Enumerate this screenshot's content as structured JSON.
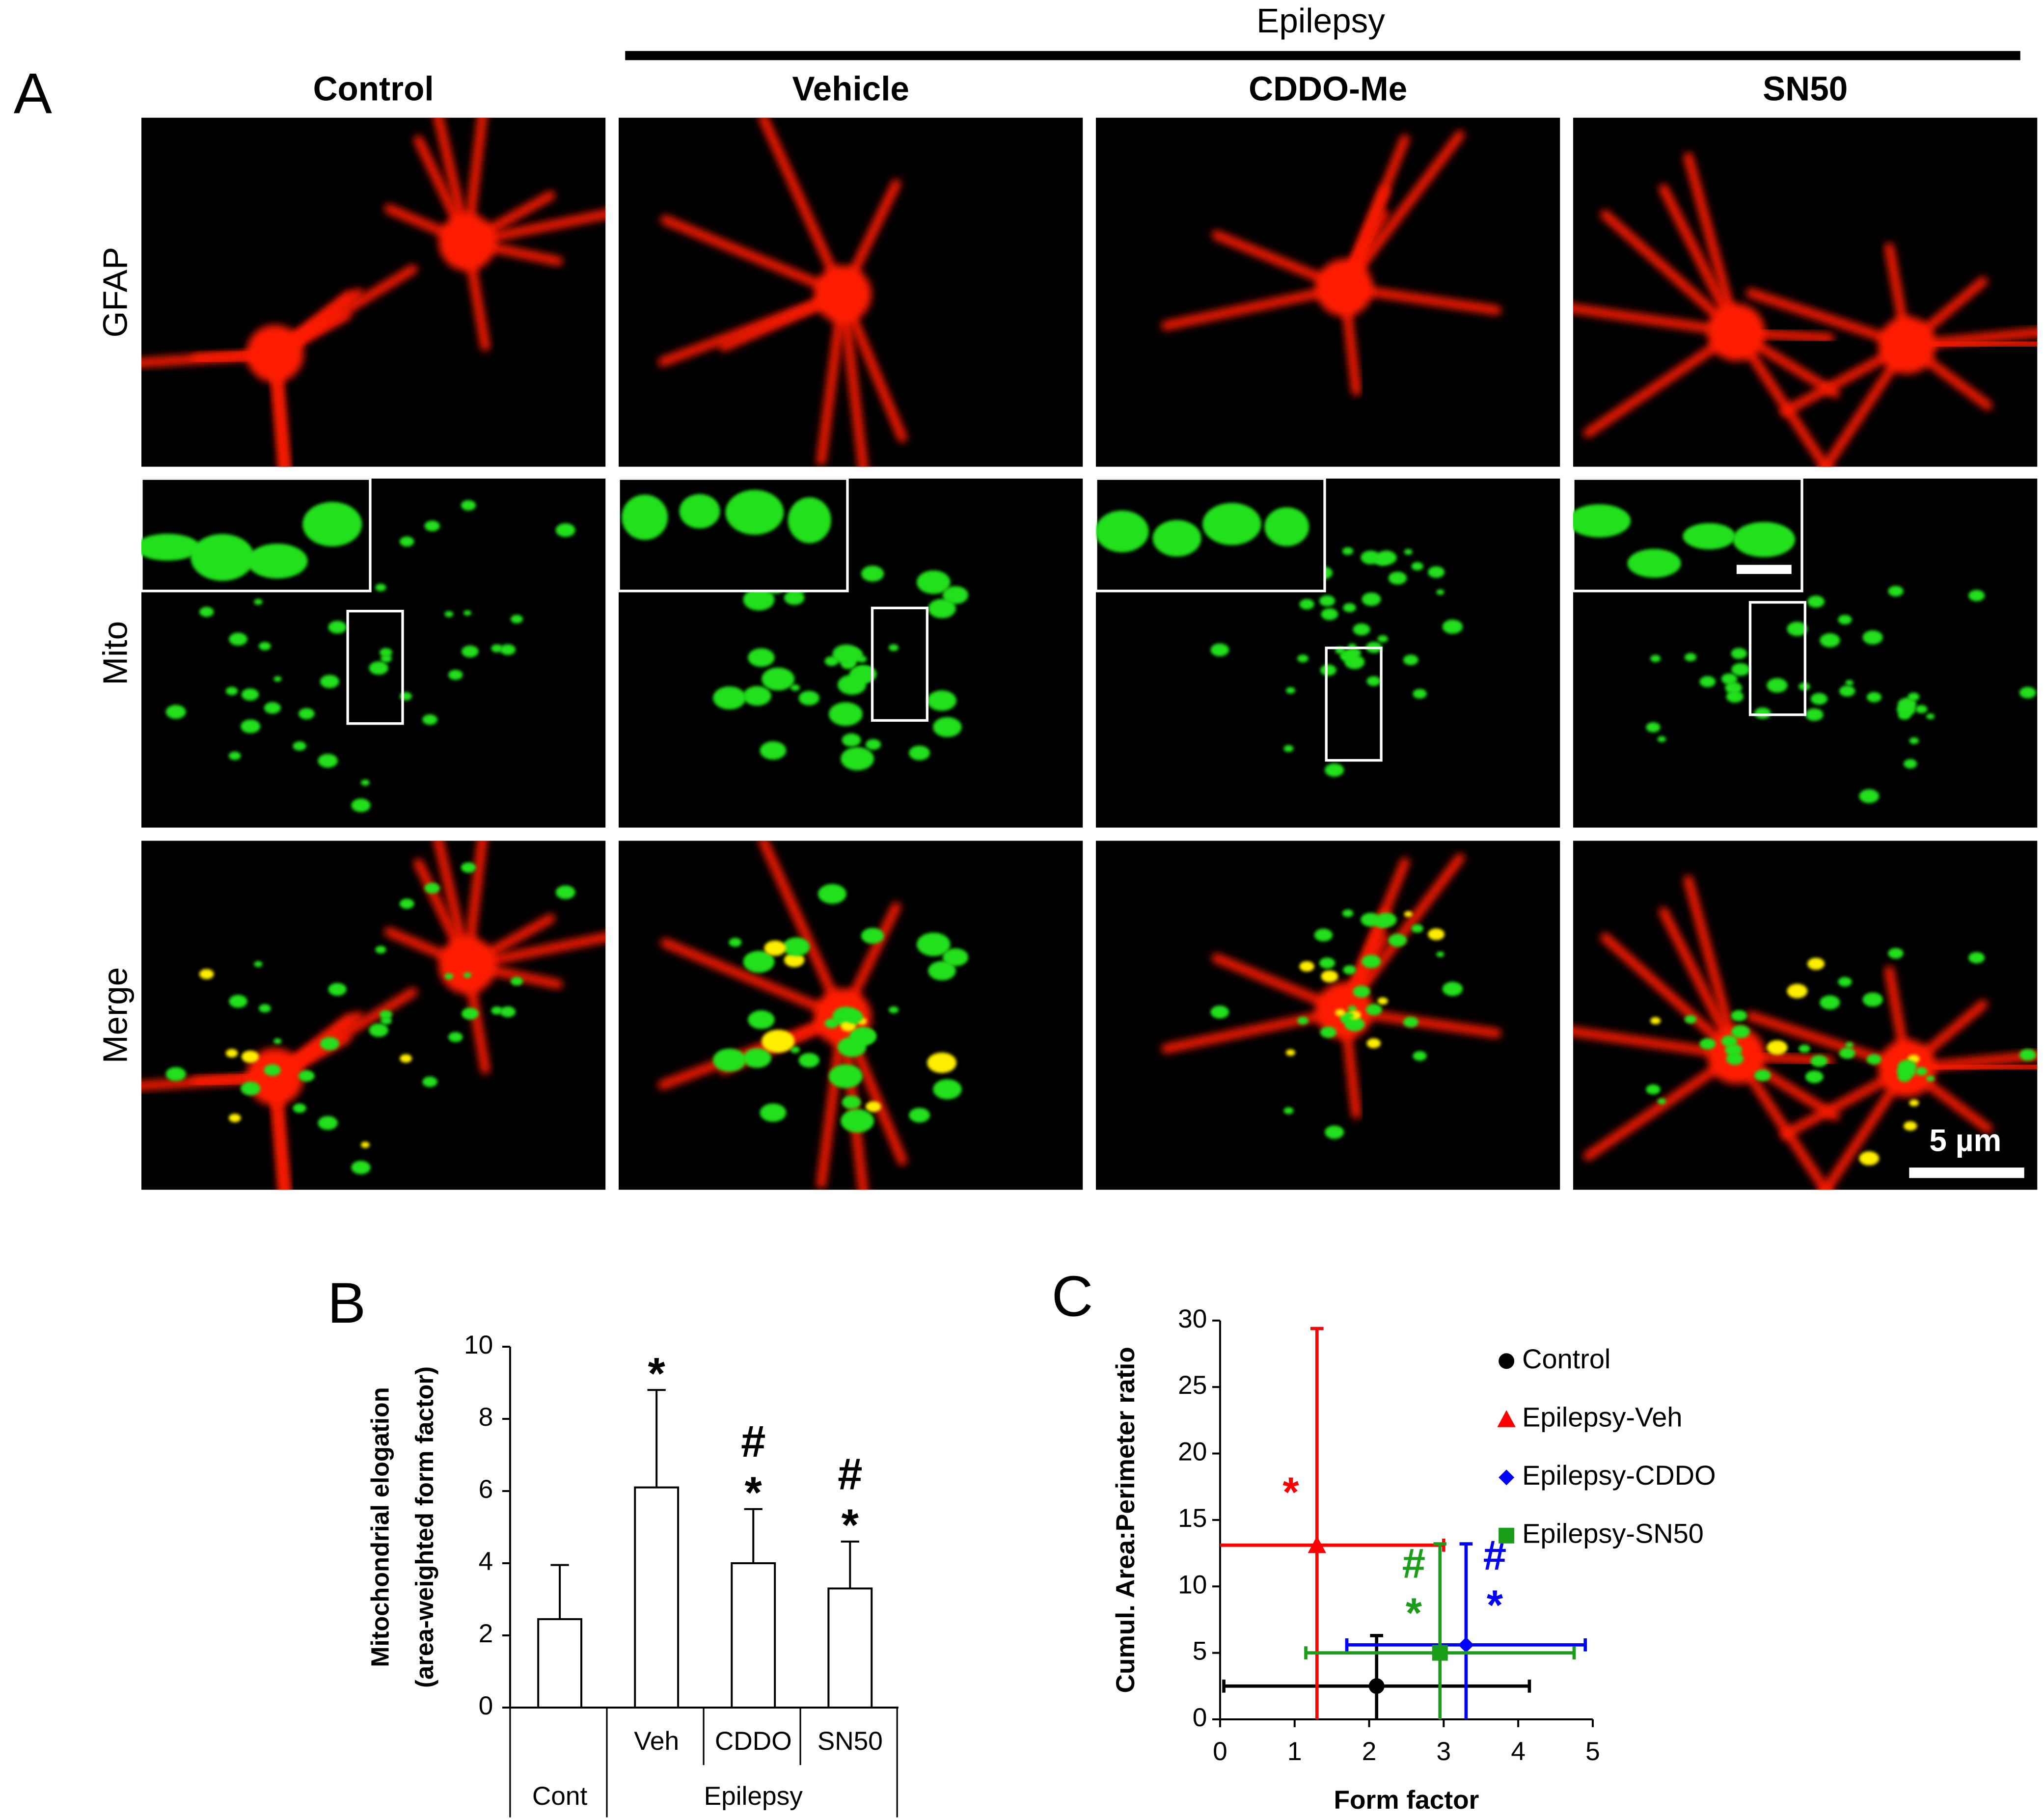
{
  "figure": {
    "panel_label": "A",
    "group_label": "Epilepsy",
    "columns": [
      "Control",
      "Vehicle",
      "CDDO-Me",
      "SN50"
    ],
    "rows": [
      "GFAP",
      "Mito",
      "Merge"
    ],
    "scale_bar": "5 µm"
  },
  "chart_data": [
    {
      "type": "bar",
      "panel_label": "B",
      "y_label": [
        "Mitochondrial elogation",
        "(area-weighted form factor)"
      ],
      "categories": [
        "Cont",
        "Veh",
        "CDDO",
        "SN50"
      ],
      "group_label": "Epilepsy",
      "values": [
        2.45,
        6.1,
        4.0,
        3.3
      ],
      "errors": [
        1.5,
        2.7,
        1.5,
        1.3
      ],
      "significance": [
        [],
        [
          "*"
        ],
        [
          "#",
          "*"
        ],
        [
          "#",
          "*"
        ]
      ],
      "color": "#ffffff",
      "ylim": [
        0,
        10
      ],
      "yticks": [
        0,
        2,
        4,
        6,
        8,
        10
      ]
    },
    {
      "type": "scatter",
      "panel_label": "C",
      "x_label": "Form factor",
      "y_label": "Cumul. Area:Perimeter ratio",
      "xlim": [
        0,
        5
      ],
      "ylim": [
        0,
        30
      ],
      "xticks": [
        0,
        1,
        2,
        3,
        4,
        5
      ],
      "yticks": [
        0,
        5,
        10,
        15,
        20,
        25,
        30
      ],
      "legend": "upper right",
      "series": [
        {
          "name": "Control",
          "color": "#000000",
          "marker": "circle",
          "x": [
            2.1
          ],
          "values": [
            2.5
          ],
          "x_errors": [
            2.05
          ],
          "errors": [
            3.8
          ],
          "significance": []
        },
        {
          "name": "Epilepsy-Veh",
          "color": "#ff0000",
          "marker": "triangle",
          "x": [
            1.3
          ],
          "values": [
            13.1
          ],
          "x_errors": [
            1.7
          ],
          "errors": [
            16.3
          ],
          "significance": [
            "*"
          ]
        },
        {
          "name": "Epilepsy-CDDO",
          "color": "#0000ff",
          "marker": "diamond",
          "x": [
            3.3
          ],
          "values": [
            5.6
          ],
          "x_errors": [
            1.6
          ],
          "errors": [
            7.6
          ],
          "significance": [
            "#",
            "*"
          ]
        },
        {
          "name": "Epilepsy-SN50",
          "color": "#1a9e1a",
          "marker": "square",
          "x": [
            2.95
          ],
          "values": [
            5.0
          ],
          "x_errors": [
            1.8
          ],
          "errors": [
            8.2
          ],
          "significance": [
            "#",
            "*"
          ]
        }
      ]
    }
  ]
}
